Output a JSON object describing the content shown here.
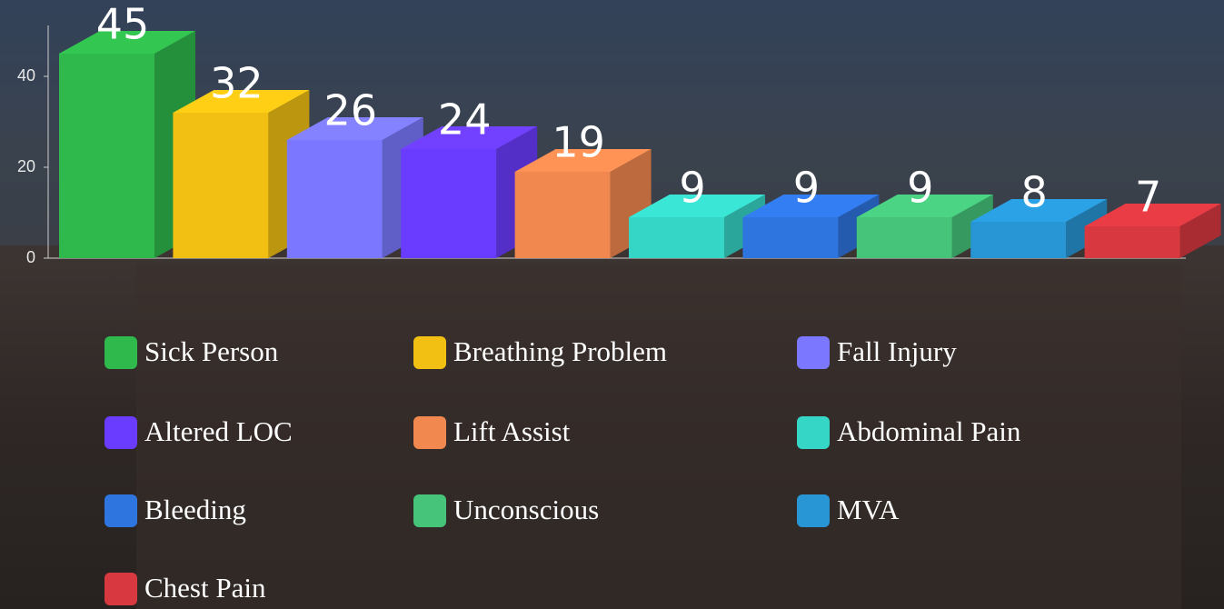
{
  "chart_data": {
    "type": "bar3d",
    "categories": [
      "Sick Person",
      "Breathing Problem",
      "Fall Injury",
      "Altered LOC",
      "Lift Assist",
      "Abdominal Pain",
      "Bleeding",
      "Unconscious",
      "MVA",
      "Chest Pain"
    ],
    "values": [
      45,
      32,
      26,
      24,
      19,
      9,
      9,
      9,
      8,
      7
    ],
    "colors": [
      "#2fb84c",
      "#f2c013",
      "#7b78ff",
      "#6a3cff",
      "#f1884f",
      "#36d6c6",
      "#2f75e0",
      "#45c47a",
      "#2896d4",
      "#d8383f"
    ],
    "ylim": [
      0,
      50
    ],
    "yticks": [
      0,
      20,
      40
    ]
  }
}
